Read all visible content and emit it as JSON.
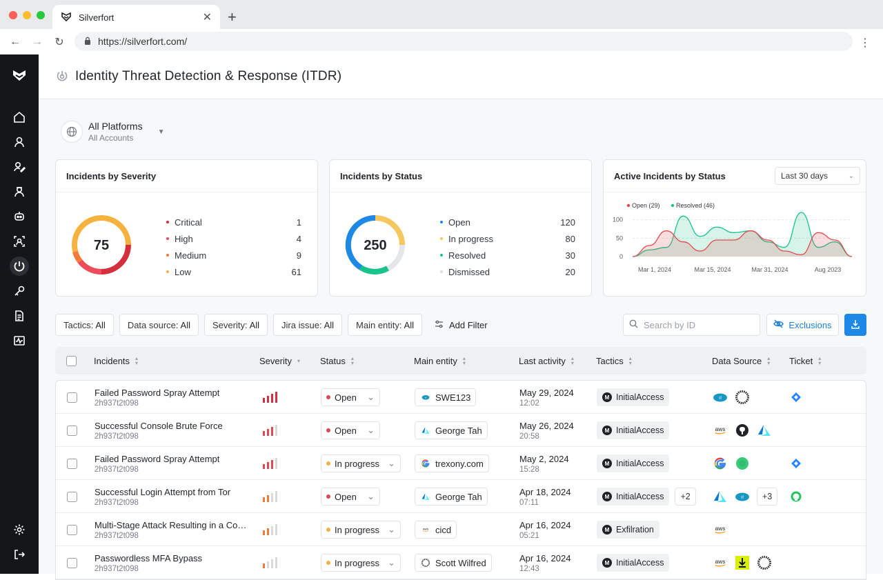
{
  "browser": {
    "tab_title": "Silverfort",
    "url": "https://silverfort.com/"
  },
  "page": {
    "title": "Identity Threat Detection & Response (ITDR)"
  },
  "platform": {
    "title": "All Platforms",
    "subtitle": "All Accounts"
  },
  "severity_card": {
    "title": "Incidents by Severity",
    "total": "75",
    "items": [
      {
        "label": "Critical",
        "value": "1",
        "color": "#d32f3f"
      },
      {
        "label": "High",
        "value": "4",
        "color": "#ee4b5b"
      },
      {
        "label": "Medium",
        "value": "9",
        "color": "#f5793b"
      },
      {
        "label": "Low",
        "value": "61",
        "color": "#f6b23e"
      }
    ]
  },
  "status_card": {
    "title": "Incidents by Status",
    "total": "250",
    "items": [
      {
        "label": "Open",
        "value": "120",
        "color": "#1e88e5"
      },
      {
        "label": "In progress",
        "value": "80",
        "color": "#f6c75e"
      },
      {
        "label": "Resolved",
        "value": "30",
        "color": "#19c48a"
      },
      {
        "label": "Dismissed",
        "value": "20",
        "color": "#dcdee2"
      }
    ]
  },
  "active_card": {
    "title": "Active Incidents by Status",
    "range": "Last 30 days",
    "chart_data": {
      "type": "area",
      "x_ticks": [
        "Mar 1, 2024",
        "Mar 15, 2024",
        "Mar 31, 2024",
        "Aug 2023"
      ],
      "y_ticks": [
        "100",
        "50",
        "0"
      ],
      "ylim": [
        0,
        120
      ],
      "series": [
        {
          "name": "Open (29)",
          "color": "#e5484d",
          "values": [
            0,
            30,
            70,
            40,
            15,
            45,
            45,
            70,
            45,
            15,
            5,
            65,
            45,
            0
          ]
        },
        {
          "name": "Resolved (46)",
          "color": "#19c48a",
          "values": [
            0,
            18,
            25,
            110,
            55,
            80,
            65,
            70,
            40,
            25,
            120,
            25,
            40,
            0
          ]
        }
      ]
    }
  },
  "filters": [
    {
      "key": "Tactics",
      "value": "All"
    },
    {
      "key": "Data source",
      "value": "All"
    },
    {
      "key": "Severity",
      "value": "All"
    },
    {
      "key": "Jira issue",
      "value": "All"
    },
    {
      "key": "Main entity",
      "value": "All"
    }
  ],
  "add_filter": "Add Filter",
  "search": {
    "placeholder": "Search by ID"
  },
  "exclusions": "Exclusions",
  "columns": [
    "Incidents",
    "Severity",
    "Status",
    "Main entity",
    "Last activity",
    "Tactics",
    "Data Source",
    "Ticket"
  ],
  "rows": [
    {
      "name": "Failed Password Spray Attempt",
      "id": "2h937t2t098",
      "sev": 4,
      "status": "Open",
      "status_color": "#e5484d",
      "entity": "SWE123",
      "entity_icon": "salesforce-icon",
      "date": "May 29, 2024",
      "time": "12:02",
      "tactic": "InitialAccess",
      "tactic_more": "",
      "sources": [
        "salesforce-icon",
        "okta-icon"
      ],
      "sources_more": "",
      "ticket": "jira-icon"
    },
    {
      "name": "Successful Console Brute Force",
      "id": "2h937t2t098",
      "sev": 3,
      "status": "Open",
      "status_color": "#e5484d",
      "entity": "George Tah",
      "entity_icon": "azure-icon",
      "date": "May 26, 2024",
      "time": "20:58",
      "tactic": "InitialAccess",
      "tactic_more": "",
      "sources": [
        "aws-icon",
        "github-icon",
        "azure-icon"
      ],
      "sources_more": "",
      "ticket": ""
    },
    {
      "name": "Failed Password Spray Attempt",
      "id": "2h937t2t098",
      "sev": 3,
      "status": "In progress",
      "status_color": "#f6b23e",
      "entity": "trexony.com",
      "entity_icon": "google-icon",
      "date": "May 2, 2024",
      "time": "15:28",
      "tactic": "InitialAccess",
      "tactic_more": "",
      "sources": [
        "google-icon",
        "green-circle-icon"
      ],
      "sources_more": "",
      "ticket": "jira-icon"
    },
    {
      "name": "Successful Login Attempt from Tor",
      "id": "2h937t2t098",
      "sev": 2,
      "status": "Open",
      "status_color": "#e5484d",
      "entity": "George Tah",
      "entity_icon": "azure-icon",
      "date": "Apr 18, 2024",
      "time": "07:11",
      "tactic": "InitialAccess",
      "tactic_more": "+2",
      "sources": [
        "azure-icon",
        "salesforce-icon"
      ],
      "sources_more": "+3",
      "ticket": "servicenow-icon"
    },
    {
      "name": "Multi-Stage Attack Resulting in a Compromised Account",
      "id": "2h937t2t098",
      "sev": 2,
      "status": "In progress",
      "status_color": "#f6b23e",
      "entity": "cicd",
      "entity_icon": "aws-icon",
      "date": "Apr 16, 2024",
      "time": "05:21",
      "tactic": "Exfilration",
      "tactic_more": "",
      "sources": [
        "aws-icon"
      ],
      "sources_more": "",
      "ticket": ""
    },
    {
      "name": "Passwordless MFA Bypass",
      "id": "2h937t2t098",
      "sev": 1,
      "status": "In progress",
      "status_color": "#f6b23e",
      "entity": "Scott Wilfred",
      "entity_icon": "okta-icon",
      "date": "Apr 16, 2024",
      "time": "12:43",
      "tactic": "InitialAccess",
      "tactic_more": "",
      "sources": [
        "aws-icon",
        "download-yellow-icon",
        "okta-icon"
      ],
      "sources_more": "",
      "ticket": ""
    }
  ],
  "sidebar": [
    "home-icon",
    "user-icon",
    "user-edit-icon",
    "agent-icon",
    "bot-icon",
    "user-search-icon",
    "itdr-icon",
    "key-icon",
    "document-icon",
    "activity-icon",
    "settings-icon",
    "logout-icon"
  ]
}
